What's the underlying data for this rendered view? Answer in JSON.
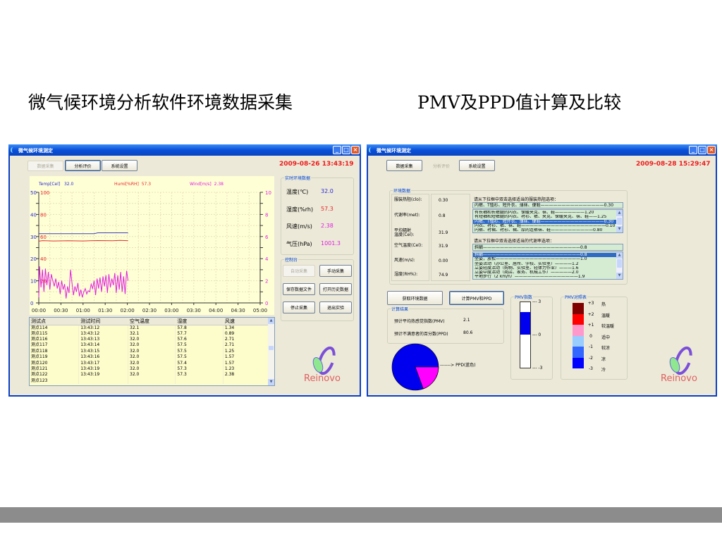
{
  "slide": {
    "left_title": "微气候环境分析软件环境数据采集",
    "right_title": "PMV及PPD值计算及比较"
  },
  "left_window": {
    "title": "微气候环境测定",
    "tabs": [
      "数据采集",
      "分析评价",
      "系统设置"
    ],
    "datetime": "2009-08-26 13:43:19",
    "chart_legend": {
      "temp_label": "Temp[Cel]",
      "temp_value": "32.0",
      "hum_label": "Humi[%RH]",
      "hum_value": "57.3",
      "wind_label": "Wind[m/s]",
      "wind_value": "2.38"
    },
    "realtime": {
      "title": "实时环境数据",
      "rows": [
        {
          "label": "温度(℃)",
          "value": "32.0",
          "color": "#2a2ad8"
        },
        {
          "label": "湿度(%rh)",
          "value": "57.3",
          "color": "#e8262a"
        },
        {
          "label": "风速(m/s)",
          "value": "2.38",
          "color": "#e020e0"
        },
        {
          "label": "气压(hPa)",
          "value": "1001.3",
          "color": "#e020e0"
        }
      ]
    },
    "control": {
      "title": "控制台",
      "buttons": [
        "自动采集",
        "手动采集",
        "保存数据文件",
        "打开历史数据",
        "停止采集",
        "退出实验"
      ]
    },
    "table": {
      "columns": [
        "测试点",
        "测试时间",
        "空气温度",
        "湿度",
        "风速"
      ],
      "rows": [
        [
          "测点114",
          "13:43:12",
          "32.1",
          "57.8",
          "1.34"
        ],
        [
          "测点115",
          "13:43:12",
          "32.1",
          "57.7",
          "0.89"
        ],
        [
          "测点116",
          "13:43:13",
          "32.0",
          "57.6",
          "2.71"
        ],
        [
          "测点117",
          "13:43:14",
          "32.0",
          "57.5",
          "2.71"
        ],
        [
          "测点118",
          "13:43:15",
          "32.0",
          "57.5",
          "1.25"
        ],
        [
          "测点119",
          "13:43:16",
          "32.0",
          "57.5",
          "1.57"
        ],
        [
          "测点120",
          "13:43:17",
          "32.0",
          "57.4",
          "1.57"
        ],
        [
          "测点121",
          "13:43:19",
          "32.0",
          "57.3",
          "1.23"
        ],
        [
          "测点122",
          "13:43:19",
          "32.0",
          "57.3",
          "2.38"
        ],
        [
          "测点123",
          "",
          "",
          "",
          ""
        ]
      ]
    },
    "logo_text": "Reinovo"
  },
  "chart_data": {
    "type": "line",
    "x_ticks": [
      "00:00",
      "00:30",
      "01:00",
      "01:30",
      "02:00",
      "02:30",
      "03:00",
      "03:30",
      "04:00",
      "04:30",
      "05:00"
    ],
    "xlim_minutes": [
      0,
      300
    ],
    "y_left_temp_ticks": [
      "0",
      "10",
      "20",
      "30",
      "40",
      "50"
    ],
    "y_left_hum_ticks": [
      "20",
      "40",
      "60",
      "80",
      "100"
    ],
    "y_right_wind_ticks": [
      "0",
      "2",
      "4",
      "6",
      "8",
      "10"
    ],
    "ylim_temp": [
      0,
      50
    ],
    "ylim_hum": [
      0,
      100
    ],
    "ylim_wind": [
      0,
      10
    ],
    "grid": true,
    "series": [
      {
        "name": "Temp[Cel]",
        "axis": "temp",
        "color": "#4040c0",
        "x": [
          0,
          30,
          60,
          75,
          80,
          90,
          120,
          121
        ],
        "values": [
          31.3,
          31.3,
          31.3,
          31.3,
          31.7,
          31.7,
          31.7,
          31.5
        ]
      },
      {
        "name": "Humi[%RH]",
        "axis": "hum",
        "color": "#e03030",
        "x": [
          0,
          5,
          20,
          40,
          60,
          80,
          100,
          110,
          120,
          121
        ],
        "values": [
          55.8,
          56.3,
          56.0,
          56.2,
          56.0,
          56.4,
          56.2,
          56.5,
          56.3,
          56.3
        ]
      },
      {
        "name": "Wind[m/s]",
        "axis": "wind",
        "color": "#e020e0",
        "x": [
          0,
          1,
          3,
          5,
          7,
          9,
          11,
          13,
          15,
          17,
          19,
          21,
          23,
          25,
          27,
          29,
          31,
          33,
          35,
          37,
          39,
          41,
          43,
          45,
          47,
          49,
          51,
          53,
          55,
          57,
          59,
          61,
          63,
          65,
          67,
          69,
          71,
          73,
          75,
          77,
          79,
          81,
          83,
          85,
          87,
          89,
          91,
          93,
          95,
          97,
          99,
          101,
          103,
          105,
          107,
          109,
          111,
          113,
          115,
          117,
          119,
          121
        ],
        "values": [
          0.5,
          3.3,
          1.4,
          3.0,
          1.0,
          3.1,
          1.6,
          2.8,
          1.2,
          2.6,
          2.0,
          1.5,
          2.2,
          1.3,
          1.9,
          0.8,
          2.0,
          1.2,
          1.7,
          0.4,
          1.5,
          0.9,
          3.0,
          1.8,
          0.7,
          1.5,
          1.0,
          1.8,
          0.6,
          1.2,
          0.5,
          1.0,
          1.3,
          0.8,
          1.1,
          1.0,
          1.7,
          1.3,
          2.0,
          0.7,
          2.2,
          1.3,
          2.3,
          1.0,
          2.4,
          1.5,
          2.5,
          0.9,
          2.6,
          1.4,
          2.2,
          1.6,
          2.7,
          0.9,
          2.5,
          1.2,
          2.8,
          1.0,
          2.4,
          0.8,
          2.9,
          2.0
        ]
      }
    ]
  },
  "right_window": {
    "title": "微气候环境测定",
    "tabs": [
      "数据采集",
      "分析评价",
      "系统设置"
    ],
    "datetime": "2009-08-28 15:29:47",
    "env": {
      "title": "环境数据",
      "rows": [
        {
          "label": "服装热阻(clo):",
          "value": "0.30"
        },
        {
          "label": "代谢率(met):",
          "value": "0.8"
        },
        {
          "label": "平均辐射\n温度(Cel):",
          "value": "31.9"
        },
        {
          "label": "空气温度(Cel):",
          "value": "31.9"
        },
        {
          "label": "风速(m/s):",
          "value": "0.00"
        },
        {
          "label": "湿度(RH%):",
          "value": "74.9"
        }
      ],
      "clothing_prompt": "请从下拉框中双击选择适当的服装热阻选项：",
      "clothing_selected": "内裤、T恤衫、短外衣、薄袜、便鞋———————————————0.30",
      "clothing_options": [
        "有长袖和长裤腿的内衣、保暖夹克、袜、鞋———————1.20",
        "有短袖和短裤腿的内衣、衬衫、裤、夹克、保暖夹克、袜、鞋——1.25",
        "内裤、T恤衫、短外衣、薄袜、便鞋———————————————0.30",
        "内衣、衬衫、裤、袜、鞋————————————————————0.10",
        "内裤、衬裙、衬衫、裙、厚的连裤袜、鞋——————————0.80"
      ],
      "clothing_selected_index": 2,
      "metabolic_prompt": "请从下拉框中双击选择适当的代谢率选项：",
      "metabolic_selected": "斜躺———————————————————————0.8",
      "metabolic_options": [
        "斜躺———————————————————————0.8",
        "坐姿，放松————————————————————1.0",
        "坐姿活动（办公室、居所、学校、实验室）————1.2",
        "立姿轻度活动（购物、实验室、轻体力作业）———1.6",
        "立姿中度活动（商店、家务、机械工作）—————2.0",
        "平地步行（2 km/h）———————————————1.9"
      ],
      "metabolic_selected_index": 0
    },
    "buttons": [
      "获取环境数据",
      "计算PMV和PPD"
    ],
    "results": {
      "title": "计算结果",
      "rows": [
        {
          "label": "预计平均热感觉指数(PMV)",
          "value": "2.1"
        },
        {
          "label": "预计不满意者的百分数(PPD)",
          "value": "80.6"
        }
      ]
    },
    "pie": {
      "ppd_percent": 80.6,
      "ppd_color": "#0000ee",
      "rest_color": "#ff00ff",
      "label": "------->  PPD(蓝色)"
    },
    "pmv_index": {
      "title": "PMV指数",
      "value": 2.1,
      "ticks": [
        "3",
        "0",
        "-3"
      ],
      "fill_color": "#0000ee"
    },
    "pmv_table": {
      "title": "PMV对照表",
      "levels": [
        {
          "value": "+3",
          "label": "热",
          "color": "#800000"
        },
        {
          "value": "+2",
          "label": "温暖",
          "color": "#ff0000"
        },
        {
          "value": "+1",
          "label": "较温暖",
          "color": "#ff99cc"
        },
        {
          "value": "0",
          "label": "适中",
          "color": "#99ccff"
        },
        {
          "value": "-1",
          "label": "较凉",
          "color": "#3366ff"
        },
        {
          "value": "-2",
          "label": "凉",
          "color": "#0000ff"
        },
        {
          "value": "-3",
          "label": "冷",
          "color": ""
        }
      ]
    },
    "logo_text": "Reinovo"
  }
}
